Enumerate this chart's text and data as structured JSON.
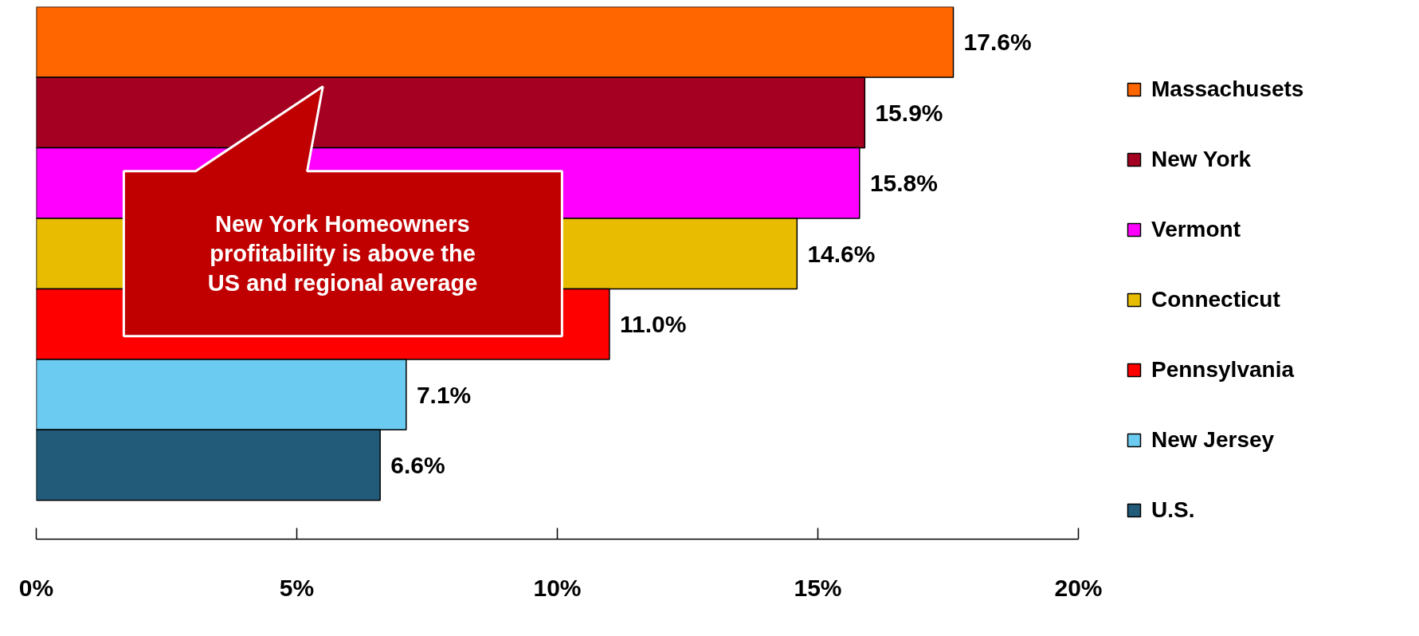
{
  "chart_data": {
    "type": "bar",
    "orientation": "horizontal",
    "stacked": true,
    "categories": [
      null,
      null,
      null,
      null,
      null,
      null,
      null
    ],
    "series": [
      {
        "name": "Massachusets",
        "color": "#ff6600",
        "values": [
          17.6,
          0,
          0,
          0,
          0,
          0,
          0
        ],
        "value_labels": [
          "17.6%",
          null,
          null,
          null,
          null,
          null,
          null
        ]
      },
      {
        "name": "New York",
        "color": "#a50021",
        "values": [
          0,
          15.9,
          0,
          0,
          0,
          0,
          0
        ],
        "value_labels": [
          null,
          "15.9%",
          null,
          null,
          null,
          null,
          null
        ]
      },
      {
        "name": "Vermont",
        "color": "#ff00ff",
        "values": [
          0,
          0,
          15.8,
          0,
          0,
          0,
          0
        ],
        "value_labels": [
          null,
          null,
          "15.8%",
          null,
          null,
          null,
          null
        ]
      },
      {
        "name": "Connecticut",
        "color": "#e8bc00",
        "values": [
          0,
          0,
          0,
          14.6,
          0,
          0,
          0
        ],
        "value_labels": [
          null,
          null,
          null,
          "14.6%",
          null,
          null,
          null
        ]
      },
      {
        "name": "Pennsylvania",
        "color": "#ff0000",
        "values": [
          0,
          0,
          0,
          0,
          11.0,
          0,
          0
        ],
        "value_labels": [
          null,
          null,
          null,
          null,
          "11.0%",
          null,
          null
        ]
      },
      {
        "name": "New Jersey",
        "color": "#6ccbf0",
        "values": [
          0,
          0,
          0,
          0,
          0,
          7.1,
          0
        ],
        "value_labels": [
          null,
          null,
          null,
          null,
          null,
          "7.1%",
          null
        ]
      },
      {
        "name": "U.S.",
        "color": "#225a7a",
        "values": [
          0,
          0,
          0,
          0,
          0,
          0,
          6.6
        ],
        "value_labels": [
          null,
          null,
          null,
          null,
          null,
          null,
          "6.6%"
        ]
      }
    ],
    "xlim": [
      0,
      20
    ],
    "xticks": [
      {
        "value": 0,
        "label": "0%"
      },
      {
        "value": 5,
        "label": "5%"
      },
      {
        "value": 10,
        "label": "10%"
      },
      {
        "value": 15,
        "label": "15%"
      },
      {
        "value": 20,
        "label": "20%"
      }
    ],
    "annotations": [
      "New York Homeowners\nprofitability is above the\nUS and regional average"
    ],
    "legend": "right",
    "grid": false
  }
}
